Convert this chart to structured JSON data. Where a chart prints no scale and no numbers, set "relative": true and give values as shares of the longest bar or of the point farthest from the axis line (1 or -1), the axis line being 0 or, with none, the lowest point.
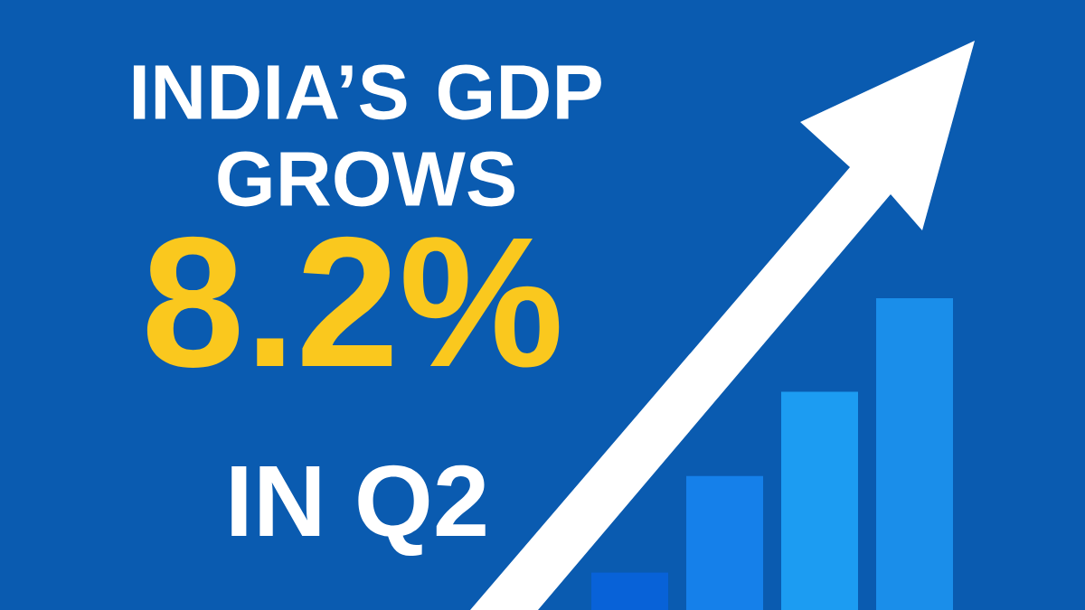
{
  "chart_data": {
    "type": "bar",
    "title": "INDIA’S GDP GROWS",
    "subtitle": "8.2%",
    "annotations": [
      "IN Q2"
    ],
    "categories": [
      null,
      null,
      null,
      null
    ],
    "values": [
      0.12,
      0.43,
      0.7,
      1
    ],
    "colors": [
      "#0862d8",
      "#1580ea",
      "#1c9cf2",
      "#1a8eea"
    ],
    "relative": true
  }
}
